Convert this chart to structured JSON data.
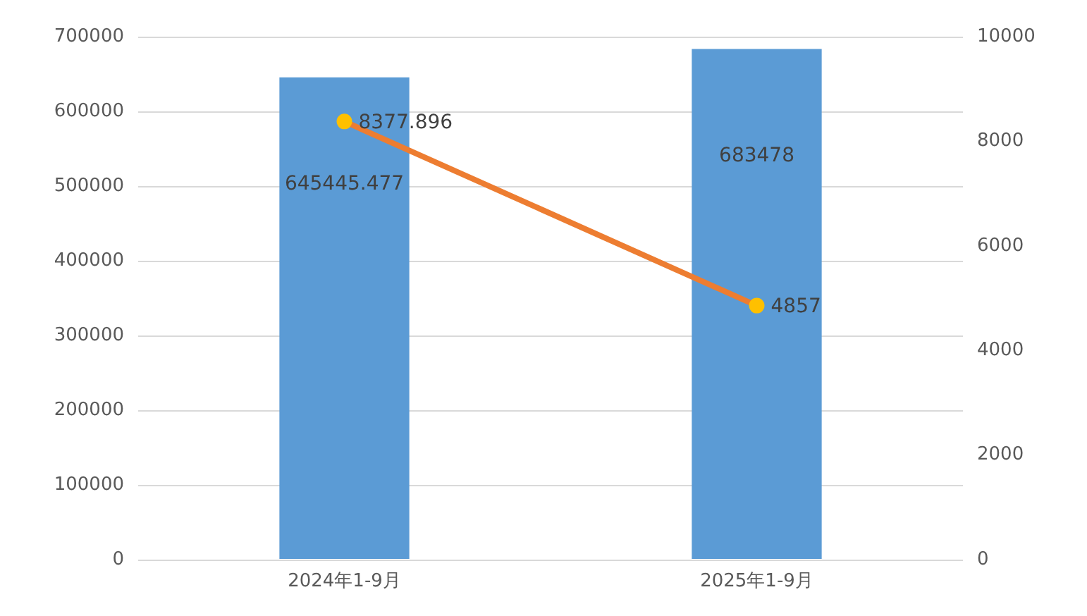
{
  "chart_data": {
    "type": "bar",
    "categories": [
      "2024年1-9月",
      "2025年1-9月"
    ],
    "series": [
      {
        "color": "#5b9bd5",
        "values": [
          645445.477,
          683478
        ]
      },
      {
        "type": "line",
        "axis": "y2",
        "color": "#ed7d31",
        "colors": [
          "#ffc000",
          "#ffc000"
        ],
        "values": [
          8377.896,
          4857
        ]
      }
    ],
    "ylim": [
      0,
      700000
    ],
    "yticks": [
      0,
      100000,
      200000,
      300000,
      400000,
      500000,
      600000,
      700000
    ],
    "y2lim": [
      0,
      10000
    ],
    "y2ticks": [
      0,
      2000,
      4000,
      6000,
      8000,
      10000
    ],
    "grid": "y",
    "legend": false,
    "marker": "circle",
    "data_labels": true
  }
}
